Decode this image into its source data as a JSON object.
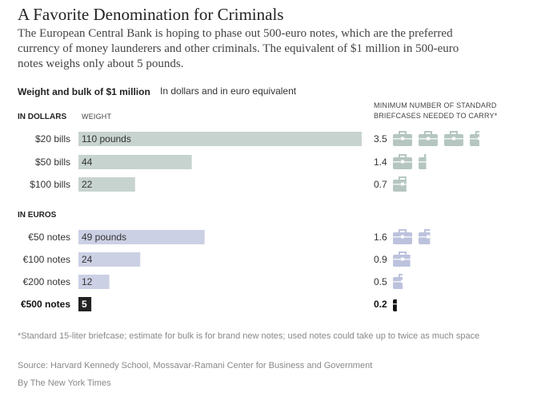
{
  "header": {
    "title": "A Favorite Denomination for Criminals",
    "subtitle": "The European Central Bank is hoping to phase out 500-euro notes, which are the preferred currency of money launderers and other criminals. The equivalent of $1 million in 500-euro notes weighs only about 5 pounds."
  },
  "chart_header": {
    "bold": "Weight and bulk of $1 million",
    "light": "In dollars and in euro equivalent",
    "dollars_section": "IN DOLLARS",
    "euros_section": "IN EUROS",
    "weight_col": "WEIGHT",
    "briefcase_col": "MINIMUM NUMBER OF STANDARD BRIEFCASES NEEDED TO CARRY*"
  },
  "colors": {
    "dollar_bar": "#c7d3ce",
    "euro_bar": "#ccd0e4",
    "highlight_bar": "#222222",
    "dollar_case": "#b5c6c0",
    "euro_case": "#bcc2dd",
    "highlight_case": "#111111"
  },
  "chart_data": {
    "type": "bar",
    "orientation": "horizontal",
    "xlim": [
      0,
      110
    ],
    "units": "pounds",
    "groups": [
      {
        "name": "IN DOLLARS",
        "rows": [
          {
            "label": "$20 bills",
            "weight": 110,
            "weight_label": "110 pounds",
            "briefcases": 3.5,
            "briefcases_label": "3.5"
          },
          {
            "label": "$50 bills",
            "weight": 44,
            "weight_label": "44",
            "briefcases": 1.4,
            "briefcases_label": "1.4"
          },
          {
            "label": "$100 bills",
            "weight": 22,
            "weight_label": "22",
            "briefcases": 0.7,
            "briefcases_label": "0.7"
          }
        ]
      },
      {
        "name": "IN EUROS",
        "rows": [
          {
            "label": "€50 notes",
            "weight": 49,
            "weight_label": "49 pounds",
            "briefcases": 1.6,
            "briefcases_label": "1.6"
          },
          {
            "label": "€100 notes",
            "weight": 24,
            "weight_label": "24",
            "briefcases": 0.9,
            "briefcases_label": "0.9"
          },
          {
            "label": "€200 notes",
            "weight": 12,
            "weight_label": "12",
            "briefcases": 0.5,
            "briefcases_label": "0.5"
          },
          {
            "label": "€500 notes",
            "weight": 5,
            "weight_label": "5",
            "briefcases": 0.2,
            "briefcases_label": "0.2",
            "highlight": true
          }
        ]
      }
    ]
  },
  "footer": {
    "footnote": "*Standard 15-liter briefcase; estimate for bulk is for brand new notes; used notes could take up to twice as much space",
    "source": "Source: Harvard Kennedy School, Mossavar-Ramani Center for Business and Government",
    "credit": "By The New York Times"
  }
}
